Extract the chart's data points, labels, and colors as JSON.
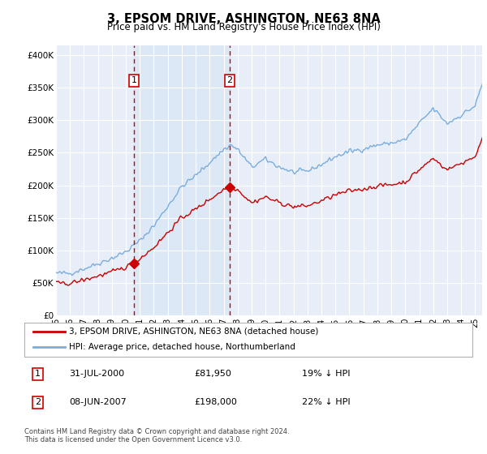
{
  "title": "3, EPSOM DRIVE, ASHINGTON, NE63 8NA",
  "subtitle": "Price paid vs. HM Land Registry's House Price Index (HPI)",
  "legend_line1": "3, EPSOM DRIVE, ASHINGTON, NE63 8NA (detached house)",
  "legend_line2": "HPI: Average price, detached house, Northumberland",
  "transaction1_date": "31-JUL-2000",
  "transaction1_price": "£81,950",
  "transaction1_hpi": "19% ↓ HPI",
  "transaction2_date": "08-JUN-2007",
  "transaction2_price": "£198,000",
  "transaction2_hpi": "22% ↓ HPI",
  "footer": "Contains HM Land Registry data © Crown copyright and database right 2024.\nThis data is licensed under the Open Government Licence v3.0.",
  "ylabel_ticks": [
    "£0",
    "£50K",
    "£100K",
    "£150K",
    "£200K",
    "£250K",
    "£300K",
    "£350K",
    "£400K"
  ],
  "ytick_values": [
    0,
    50000,
    100000,
    150000,
    200000,
    250000,
    300000,
    350000,
    400000
  ],
  "ylim": [
    0,
    415000
  ],
  "red_color": "#cc0000",
  "blue_color": "#7aaddc",
  "shade_color": "#dce8f5",
  "bg_color": "#e8eef8",
  "grid_color": "#ffffff",
  "transaction1_x": 2000.58,
  "transaction2_x": 2007.44,
  "xlim_left": 1995.0,
  "xlim_right": 2025.5
}
